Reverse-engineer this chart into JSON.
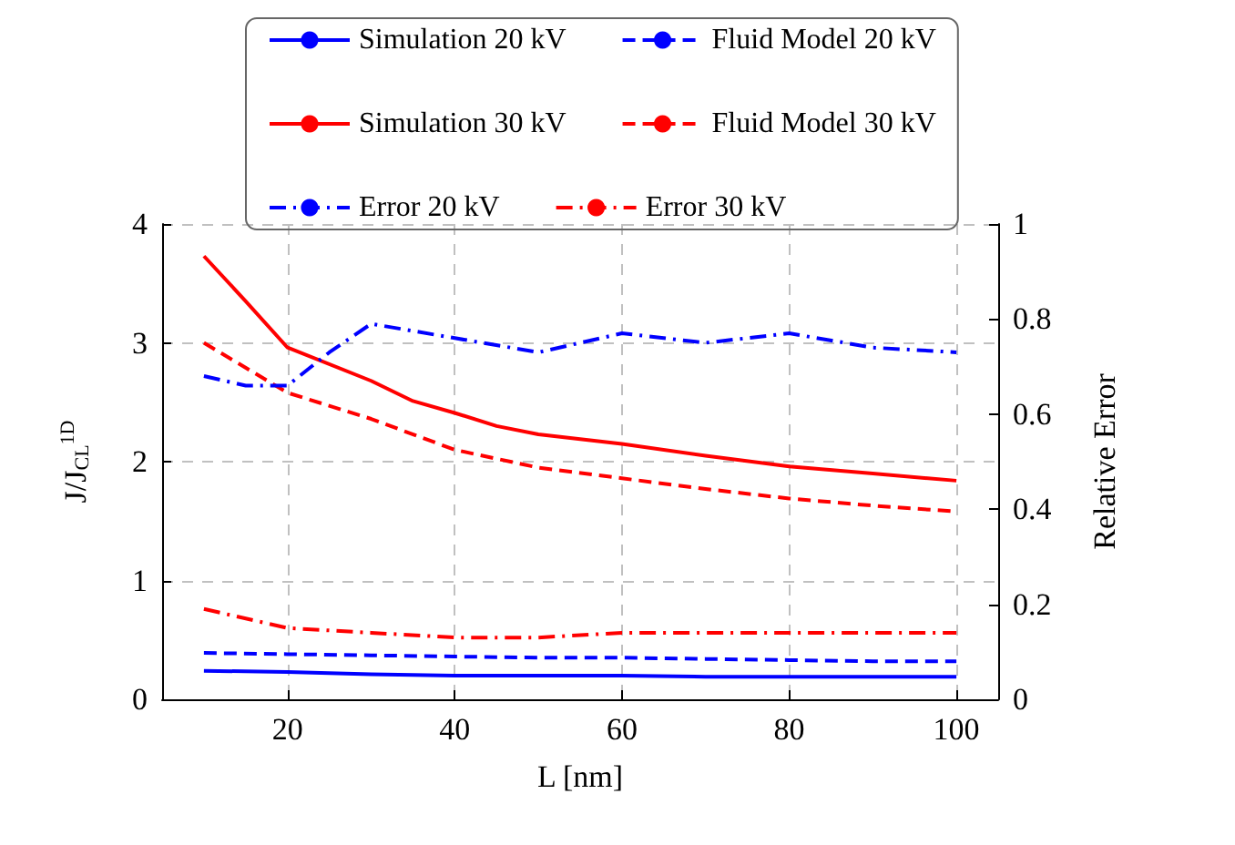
{
  "chart_data": {
    "type": "line",
    "xlabel": "L [nm]",
    "ylabel": "J/J$_{CL}$$^{1D}$",
    "y2label": "Relative Error",
    "xlim": [
      5,
      105
    ],
    "xticks": [
      20,
      40,
      60,
      80,
      100
    ],
    "ylim": [
      0,
      4
    ],
    "yticks": [
      0,
      1,
      2,
      3,
      4
    ],
    "y2lim": [
      0,
      1
    ],
    "y2ticks": [
      0,
      0.2,
      0.4,
      0.6,
      0.8,
      1
    ],
    "grid": true,
    "legend": "top",
    "marker": "none",
    "series": [
      {
        "name": "Simulation 20 kV",
        "color": "#0000ff",
        "line_style": "solid",
        "x": [
          10,
          20,
          30,
          40,
          50,
          60,
          70,
          80,
          90,
          100
        ],
        "values": [
          0.24,
          0.23,
          0.21,
          0.2,
          0.2,
          0.2,
          0.19,
          0.19,
          0.19,
          0.19
        ]
      },
      {
        "name": "Fluid Model 20 kV",
        "color": "#0000ff",
        "line_style": "dashed",
        "x": [
          10,
          20,
          30,
          40,
          50,
          60,
          70,
          80,
          90,
          100
        ],
        "values": [
          0.39,
          0.38,
          0.37,
          0.36,
          0.35,
          0.35,
          0.34,
          0.33,
          0.32,
          0.32
        ]
      },
      {
        "name": "Simulation 30 kV",
        "color": "#ff0000",
        "line_style": "solid",
        "x": [
          10,
          15,
          20,
          30,
          35,
          40,
          45,
          50,
          60,
          70,
          80,
          90,
          100
        ],
        "values": [
          3.73,
          3.35,
          2.96,
          2.68,
          2.51,
          2.41,
          2.3,
          2.23,
          2.15,
          2.05,
          1.96,
          1.9,
          1.84
        ]
      },
      {
        "name": "Fluid Model 30 kV",
        "color": "#ff0000",
        "line_style": "dashed",
        "x": [
          10,
          20,
          30,
          40,
          50,
          60,
          70,
          80,
          90,
          100
        ],
        "values": [
          3.0,
          2.58,
          2.36,
          2.1,
          1.95,
          1.86,
          1.77,
          1.69,
          1.63,
          1.58
        ]
      },
      {
        "name": "Error 20 kV",
        "color": "#0000ff",
        "line_style": "dashdot",
        "axis": "y2",
        "x": [
          10,
          15,
          20,
          25,
          30,
          40,
          50,
          60,
          70,
          80,
          90,
          100
        ],
        "values": [
          0.68,
          0.66,
          0.66,
          0.73,
          0.79,
          0.76,
          0.73,
          0.77,
          0.75,
          0.77,
          0.74,
          0.73
        ]
      },
      {
        "name": "Error 30 kV",
        "color": "#ff0000",
        "line_style": "dashdot",
        "axis": "y2",
        "x": [
          10,
          20,
          30,
          40,
          50,
          60,
          70,
          80,
          90,
          100
        ],
        "values": [
          0.19,
          0.15,
          0.14,
          0.13,
          0.13,
          0.14,
          0.14,
          0.14,
          0.14,
          0.14
        ]
      }
    ]
  }
}
